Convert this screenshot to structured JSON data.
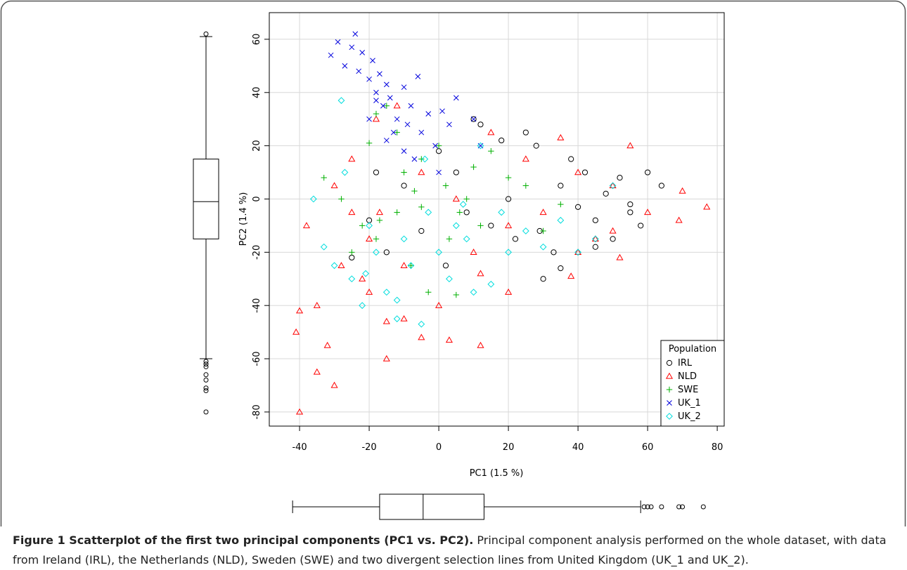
{
  "chart_data": {
    "type": "scatter",
    "xlabel": "PC1 (1.5 %)",
    "ylabel": "PC2 (1.4 %)",
    "xlim": [
      -48.7,
      82
    ],
    "ylim": [
      -85.3,
      70
    ],
    "xticks": [
      -40,
      -20,
      0,
      20,
      40,
      60,
      80
    ],
    "yticks": [
      -80,
      -60,
      -40,
      -20,
      0,
      20,
      40,
      60
    ],
    "grid": true,
    "legend_title": "Population",
    "legend_corner": "bottom-right",
    "series": [
      {
        "name": "IRL",
        "color": "#000000",
        "marker": "circle",
        "x": [
          64,
          60,
          58,
          55,
          52,
          50,
          48,
          45,
          42,
          40,
          38,
          35,
          33,
          30,
          28,
          25,
          22,
          20,
          18,
          15,
          12,
          10,
          8,
          5,
          2,
          0,
          -5,
          -10,
          -15,
          -20,
          -25,
          29,
          35,
          45,
          55,
          -18
        ],
        "values": [
          5,
          10,
          -10,
          -5,
          8,
          -15,
          2,
          -8,
          10,
          -3,
          15,
          5,
          -20,
          -30,
          20,
          25,
          -15,
          0,
          22,
          -10,
          28,
          30,
          -5,
          10,
          -25,
          18,
          -12,
          5,
          -20,
          -8,
          -22,
          -12,
          -26,
          -18,
          -2,
          10
        ]
      },
      {
        "name": "NLD",
        "color": "#ff0000",
        "marker": "triangle",
        "x": [
          77,
          70,
          69,
          60,
          55,
          52,
          50,
          45,
          40,
          38,
          35,
          30,
          25,
          20,
          15,
          12,
          10,
          5,
          0,
          -5,
          -10,
          -12,
          -15,
          -18,
          -20,
          -22,
          -25,
          -28,
          -30,
          -32,
          -35,
          -38,
          -40,
          -41,
          -40,
          -30,
          -25,
          -20,
          -17,
          -10,
          3,
          12,
          20,
          40,
          50,
          -5,
          -15,
          -35
        ],
        "values": [
          -3,
          3,
          -8,
          -5,
          20,
          -22,
          5,
          -15,
          10,
          -29,
          23,
          -5,
          15,
          -10,
          25,
          -55,
          -20,
          0,
          -40,
          10,
          -45,
          35,
          -60,
          30,
          -15,
          -30,
          -5,
          -25,
          -70,
          -55,
          -40,
          -10,
          -80,
          -50,
          -42,
          5,
          15,
          -35,
          -5,
          -25,
          -53,
          -28,
          -35,
          -20,
          -12,
          -52,
          -46,
          -65
        ]
      },
      {
        "name": "SWE",
        "color": "#00b000",
        "marker": "plus",
        "x": [
          -33,
          -28,
          -25,
          -20,
          -18,
          -15,
          -12,
          -10,
          -8,
          -5,
          -3,
          0,
          2,
          5,
          8,
          10,
          12,
          15,
          20,
          25,
          30,
          35,
          -22,
          -17,
          -7,
          3,
          -18,
          -12,
          6,
          -5
        ],
        "values": [
          8,
          0,
          -20,
          21,
          -15,
          35,
          -5,
          10,
          -25,
          15,
          -35,
          20,
          5,
          -36,
          0,
          12,
          -10,
          18,
          8,
          5,
          -12,
          -2,
          -10,
          -8,
          3,
          -15,
          32,
          25,
          -5,
          -3
        ]
      },
      {
        "name": "UK_1",
        "color": "#0000dd",
        "marker": "cross",
        "x": [
          -31,
          -29,
          -27,
          -25,
          -24,
          -23,
          -22,
          -20,
          -19,
          -18,
          -17,
          -16,
          -15,
          -14,
          -12,
          -10,
          -9,
          -8,
          -6,
          -5,
          -3,
          -1,
          1,
          3,
          5,
          -20,
          -15,
          -10,
          10,
          12,
          -18,
          -13,
          -7,
          0
        ],
        "values": [
          54,
          59,
          50,
          57,
          62,
          48,
          55,
          45,
          52,
          40,
          47,
          35,
          43,
          38,
          30,
          42,
          28,
          35,
          46,
          25,
          32,
          20,
          33,
          28,
          38,
          30,
          22,
          18,
          30,
          20,
          37,
          25,
          15,
          10
        ]
      },
      {
        "name": "UK_2",
        "color": "#00dddd",
        "marker": "diamond",
        "x": [
          -36,
          -33,
          -30,
          -28,
          -25,
          -22,
          -20,
          -18,
          -15,
          -12,
          -10,
          -8,
          -5,
          -3,
          0,
          3,
          5,
          8,
          10,
          15,
          18,
          20,
          25,
          30,
          35,
          40,
          45,
          50,
          -27,
          -12,
          -4,
          12,
          -21,
          7
        ],
        "values": [
          0,
          -18,
          -25,
          37,
          -30,
          -40,
          -10,
          -20,
          -35,
          -45,
          -15,
          -25,
          -47,
          -5,
          -20,
          -30,
          -10,
          -15,
          -35,
          -32,
          -5,
          -20,
          -12,
          -18,
          -8,
          -20,
          -15,
          5,
          10,
          -38,
          15,
          20,
          -28,
          -2
        ]
      }
    ],
    "boxplots": [
      {
        "axis": "y",
        "min": -60,
        "q1": -15,
        "median": -1,
        "q3": 15,
        "max": 61,
        "outliers": [
          62,
          -61,
          -62,
          -63,
          -66,
          -68,
          -71,
          -72,
          -80
        ]
      },
      {
        "axis": "x",
        "min": -42,
        "q1": -17,
        "median": -4.5,
        "q3": 13,
        "max": 58,
        "outliers": [
          59,
          60,
          61,
          64,
          69,
          70,
          76
        ]
      }
    ],
    "caption_title": "Figure 1 Scatterplot of the first two principal components (PC1 vs. PC2).",
    "caption_text": "Principal component analysis performed on the whole dataset, with data from Ireland (IRL), the Netherlands (NLD), Sweden (SWE) and two divergent selection lines from United Kingdom (UK_1 and UK_2)."
  }
}
